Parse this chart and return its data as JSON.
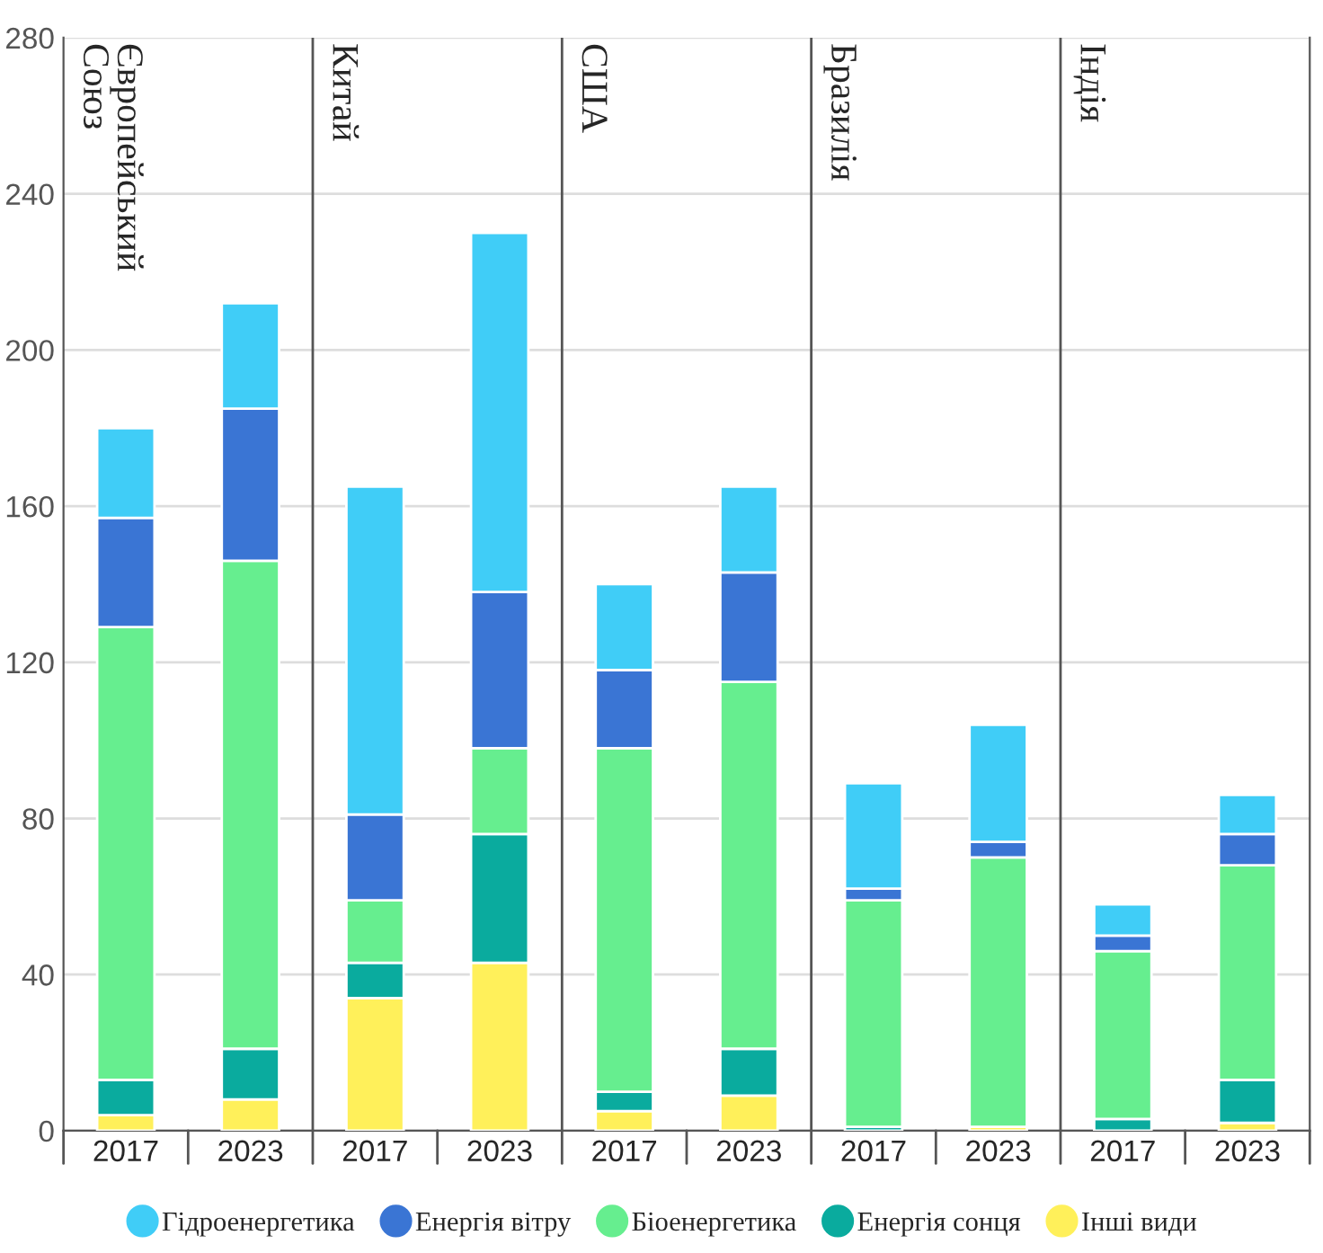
{
  "chart_data": {
    "type": "bar",
    "stacked": true,
    "categories": [
      "2017",
      "2023",
      "2017",
      "2023",
      "2017",
      "2023",
      "2017",
      "2023",
      "2017",
      "2023"
    ],
    "series": [
      {
        "name": "Інші види",
        "color": "#fff05a",
        "values": [
          4,
          8,
          34,
          43,
          5,
          9,
          0,
          1,
          0,
          2
        ]
      },
      {
        "name": "Енергія сонця",
        "color": "#0aab9e",
        "values": [
          9,
          13,
          9,
          33,
          5,
          12,
          1,
          0,
          3,
          11
        ]
      },
      {
        "name": "Біоенергетика",
        "color": "#66ee8f",
        "values": [
          116,
          125,
          16,
          22,
          88,
          94,
          58,
          69,
          43,
          55
        ]
      },
      {
        "name": "Енергія вітру",
        "color": "#3a75d4",
        "values": [
          28,
          39,
          22,
          40,
          20,
          28,
          3,
          4,
          4,
          8
        ]
      },
      {
        "name": "Гідроенергетика",
        "color": "#40cdf7",
        "values": [
          23,
          27,
          84,
          92,
          22,
          22,
          27,
          30,
          8,
          10
        ]
      }
    ],
    "annotations": [
      "Європейський\nСоюз",
      "Китай",
      "США",
      "Бразилія",
      "Індія"
    ],
    "ylim": [
      0,
      280
    ],
    "yticks": [
      0,
      40,
      80,
      120,
      160,
      200,
      240,
      280
    ],
    "grid": "y",
    "legend": "bottom"
  }
}
